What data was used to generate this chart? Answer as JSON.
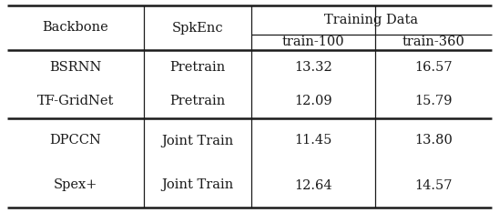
{
  "group_header": "Training Data",
  "col_headers_left": [
    "Backbone",
    "SpkEnc"
  ],
  "col_headers_right": [
    "train-100",
    "train-360"
  ],
  "rows": [
    [
      "BSRNN",
      "Pretrain",
      "13.32",
      "16.57"
    ],
    [
      "TF-GridNet",
      "Pretrain",
      "12.09",
      "15.79"
    ],
    [
      "DPCCN",
      "Joint Train",
      "11.45",
      "13.80"
    ],
    [
      "Spex+",
      "Joint Train",
      "12.64",
      "14.57"
    ]
  ],
  "background_color": "#ffffff",
  "text_color": "#1a1a1a",
  "line_color": "#1a1a1a",
  "font_size": 10.5
}
